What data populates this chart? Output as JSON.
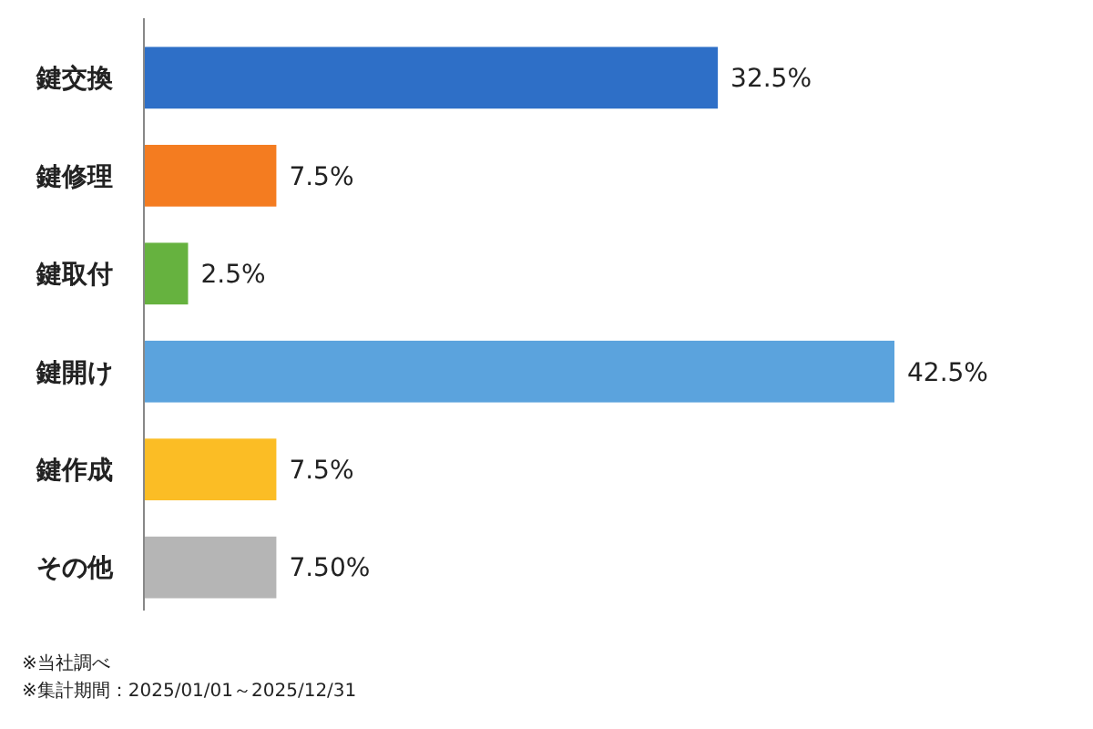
{
  "chart_data": {
    "type": "bar",
    "orientation": "horizontal",
    "categories": [
      "鍵交換",
      "鍵修理",
      "鍵取付",
      "鍵開け",
      "鍵作成",
      "その他"
    ],
    "values": [
      32.5,
      7.5,
      2.5,
      42.5,
      7.5,
      7.5
    ],
    "value_labels": [
      "32.5%",
      "7.5%",
      "2.5%",
      "42.5%",
      "7.5%",
      "7.50%"
    ],
    "colors": [
      "#2e6fc7",
      "#f47c20",
      "#66b23f",
      "#5ba3dd",
      "#fbbd25",
      "#b5b5b5"
    ],
    "annotations": [
      "※当社調べ",
      "※集計期間：2025/01/01～2025/12/31"
    ]
  }
}
